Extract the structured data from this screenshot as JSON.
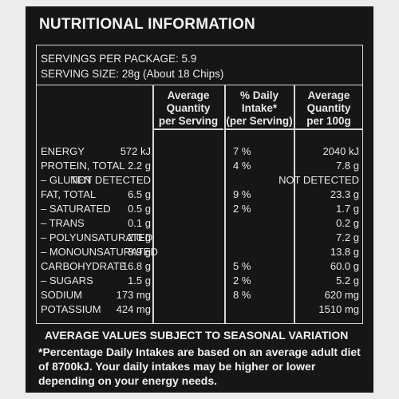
{
  "title": "NUTRITIONAL INFORMATION",
  "servings_per_package": "SERVINGS PER PACKAGE: 5.9",
  "serving_size": "SERVING SIZE: 28g (About 18 Chips)",
  "headers": {
    "avg_serving": [
      "Average",
      "Quantity",
      "per Serving"
    ],
    "daily_intake": [
      "% Daily",
      "Intake*",
      "(per Serving)"
    ],
    "avg_100g": [
      "Average",
      "Quantity",
      "per 100g"
    ]
  },
  "rows": [
    {
      "label": "ENERGY",
      "serving": "572 kJ",
      "pct": "7 %",
      "per100": "2040 kJ"
    },
    {
      "label": "PROTEIN, TOTAL",
      "serving": "2.2 g",
      "pct": "4 %",
      "per100": "7.8 g"
    },
    {
      "label": "– GLUTEN",
      "serving": "NOT DETECTED",
      "pct": "",
      "per100": "NOT DETECTED"
    },
    {
      "label": "FAT, TOTAL",
      "serving": "6.5 g",
      "pct": "9 %",
      "per100": "23.3 g"
    },
    {
      "label": "– SATURATED",
      "serving": "0.5 g",
      "pct": "2 %",
      "per100": "1.7 g"
    },
    {
      "label": "– TRANS",
      "serving": "0.1 g",
      "pct": "",
      "per100": "0.2 g"
    },
    {
      "label": "– POLYUNSATURATED",
      "serving": "2.0 g",
      "pct": "",
      "per100": "7.2 g"
    },
    {
      "label": "– MONOUNSATURATED",
      "serving": "3.9 g",
      "pct": "",
      "per100": "13.8 g"
    },
    {
      "label": "CARBOHYDRATE",
      "serving": "16.8 g",
      "pct": "5 %",
      "per100": "60.0 g"
    },
    {
      "label": "– SUGARS",
      "serving": "1.5 g",
      "pct": "2 %",
      "per100": "5.2 g"
    },
    {
      "label": "SODIUM",
      "serving": "173 mg",
      "pct": "8 %",
      "per100": "620 mg"
    },
    {
      "label": "POTASSIUM",
      "serving": "424 mg",
      "pct": "",
      "per100": "1510 mg"
    }
  ],
  "average_values_note": "AVERAGE VALUES SUBJECT TO SEASONAL VARIATION",
  "footnote": "*Percentage Daily Intakes are based on an average adult diet of 8700kJ. Your daily intakes may be higher or lower depending on your energy needs."
}
